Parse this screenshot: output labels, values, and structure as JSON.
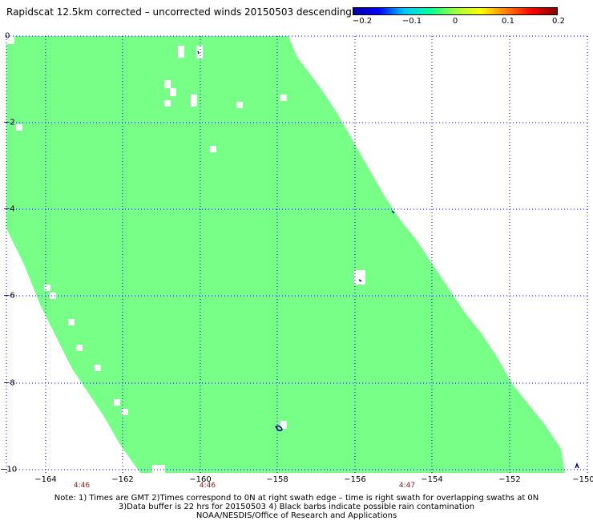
{
  "title": "Rapidscat 12.5km corrected – uncorrected winds 20150503 descending",
  "colorbar": {
    "labels": [
      "−0.2",
      "−0.1",
      "0",
      "0.1",
      "0.2"
    ],
    "stops": [
      "#0000a0",
      "#0000ff",
      "#00c8ff",
      "#00ff9a",
      "#a0ff40",
      "#ffff00",
      "#ff8000",
      "#ff0000",
      "#800000"
    ]
  },
  "axes": {
    "lat_labels": [
      "0",
      "−2",
      "−4",
      "−6",
      "−8",
      "−10"
    ],
    "lon_labels": [
      "−164",
      "−162",
      "−160",
      "−158",
      "−156",
      "−154",
      "−152",
      "−150"
    ],
    "lat_range": [
      -10,
      0
    ],
    "lon_range": [
      -165,
      -150
    ]
  },
  "times": [
    "4:46",
    "4:46",
    "4:47"
  ],
  "notes": [
    "Note: 1) Times are GMT 2)Times correspond to 0N at right swath edge – time is right swath for overlapping swaths at 0N",
    "3)Data buffer is 22 hrs for 20150503 4) Black barbs indicate possible rain contamination",
    "NOAA/NESDIS/Office of Research and Applications"
  ],
  "colors": {
    "swath": "#77ff88",
    "grid": "#0000cc",
    "barb": "#000080",
    "time_label": "#8b1a1a"
  }
}
